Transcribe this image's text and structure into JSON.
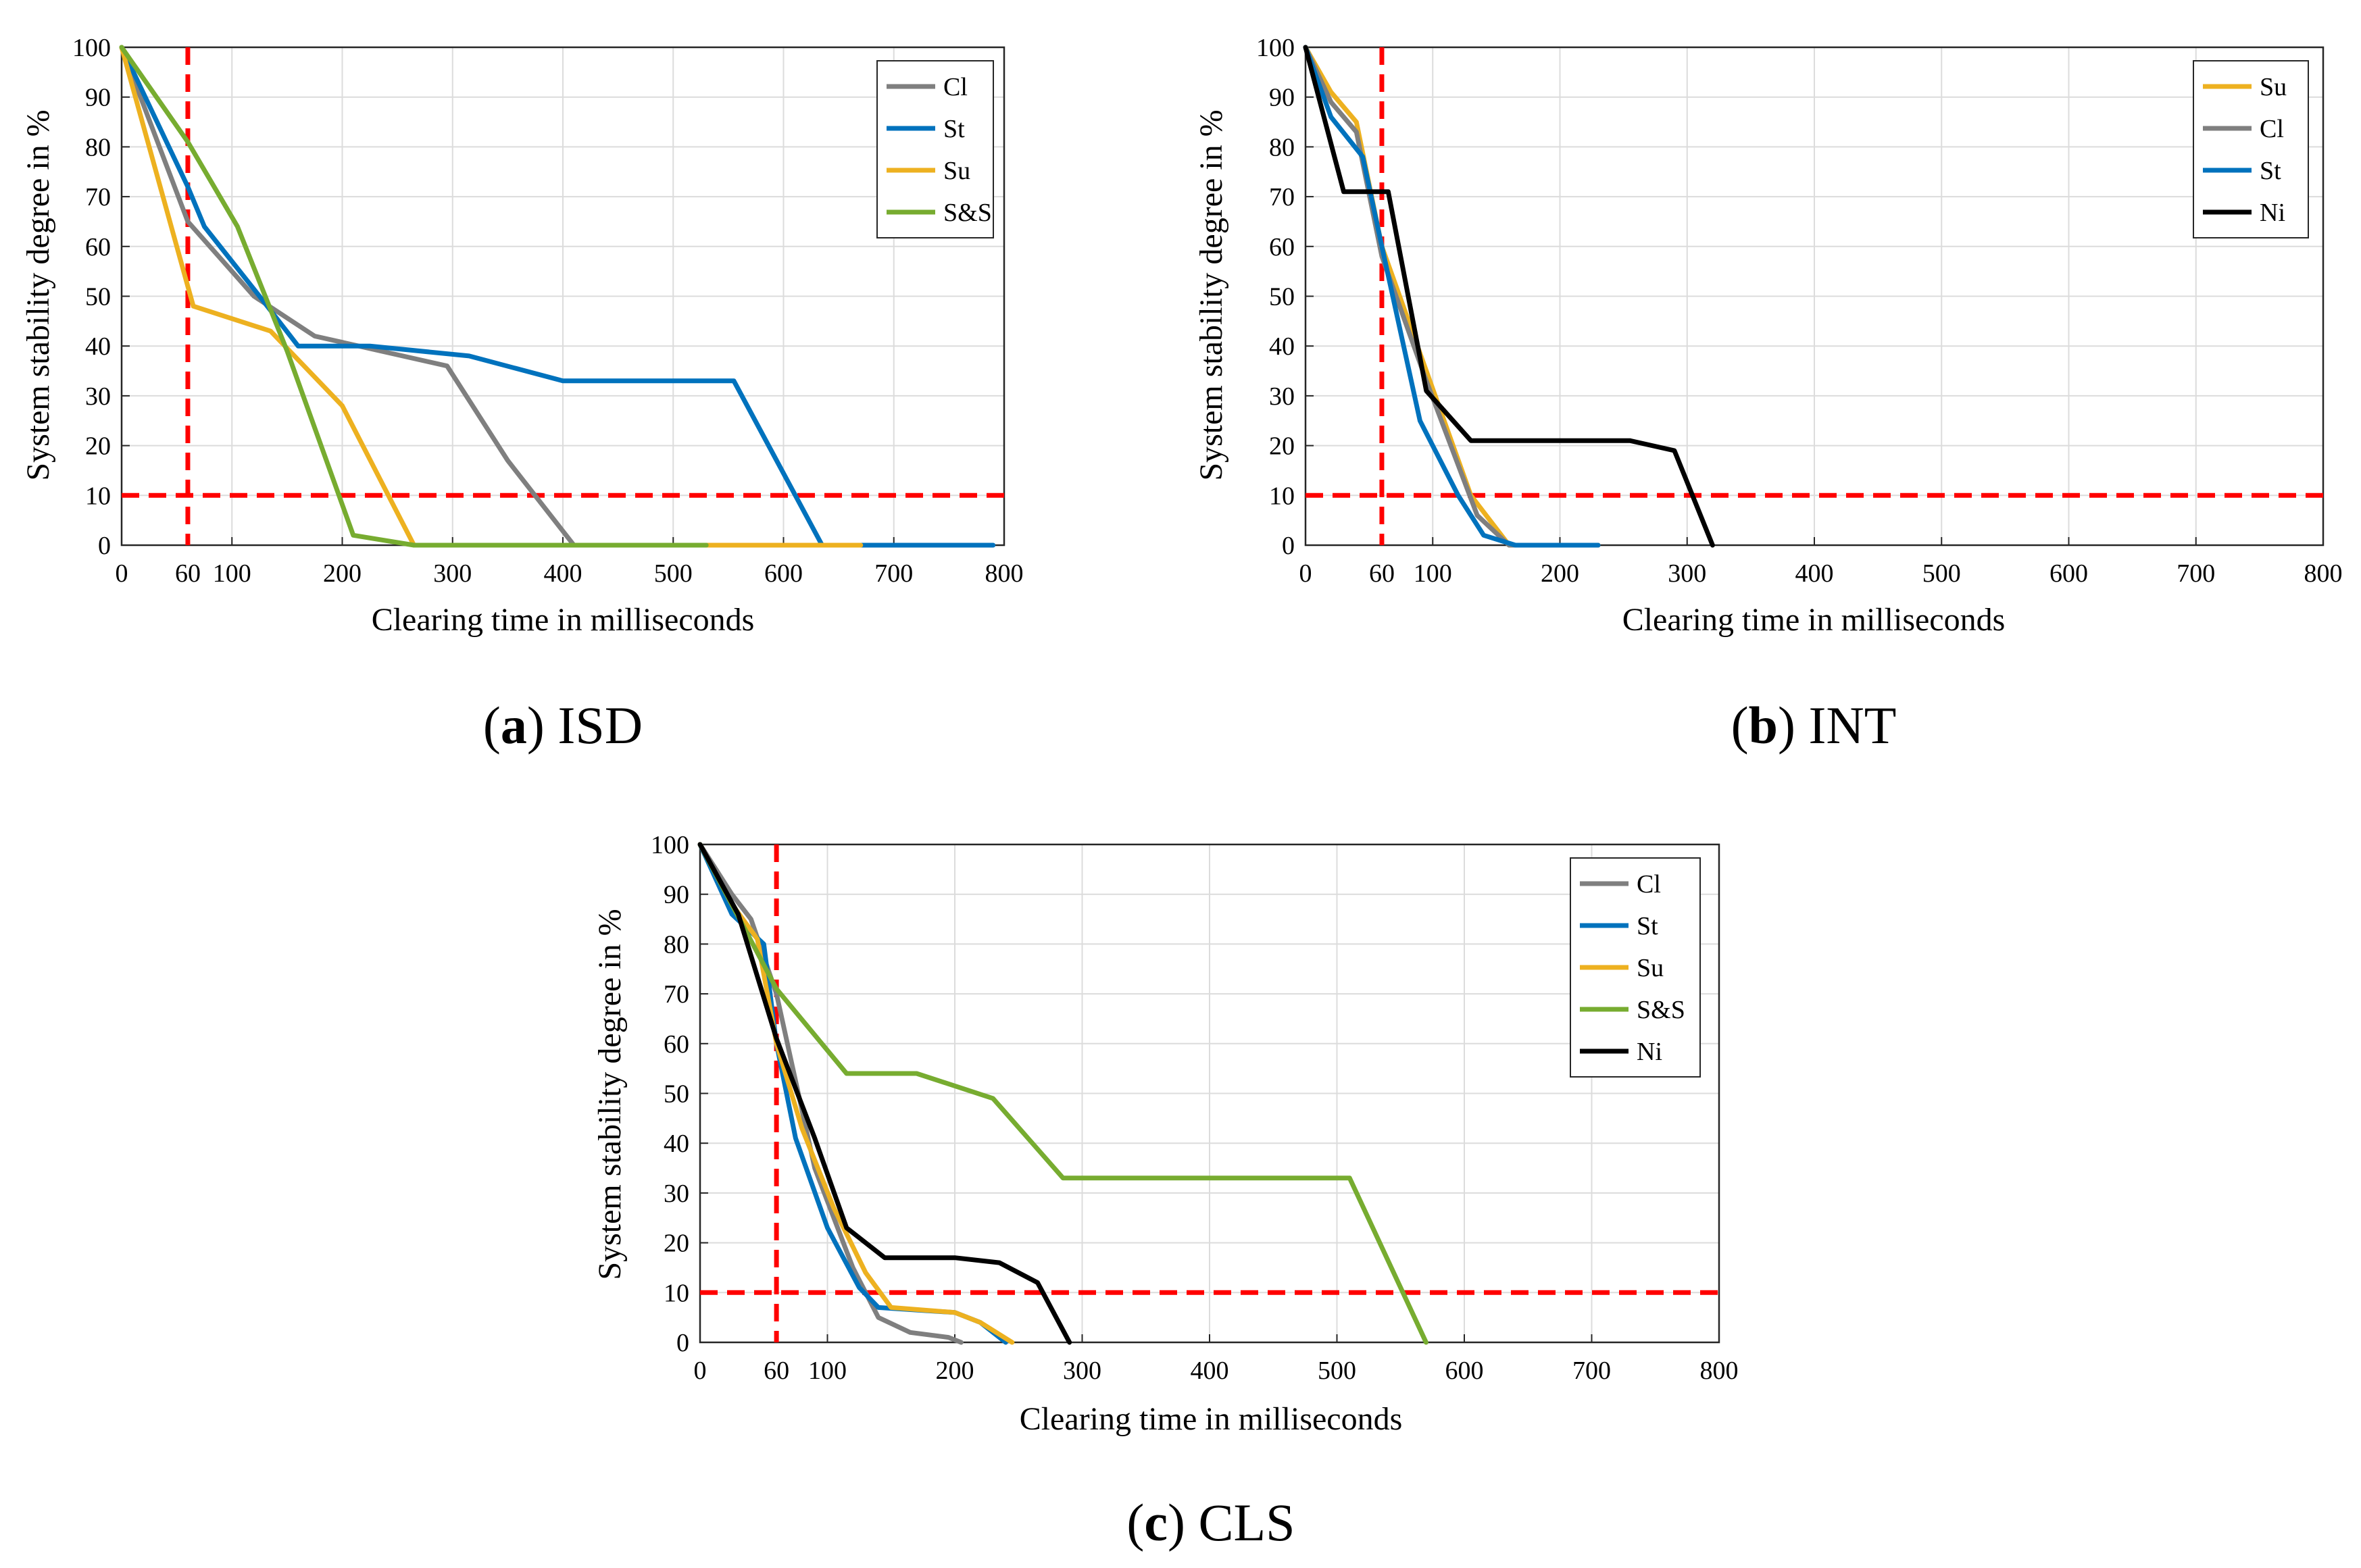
{
  "colors": {
    "Cl": "#7f7f7f",
    "St": "#0072bd",
    "Su": "#edb120",
    "S&S": "#77ac30",
    "Ni": "#000000",
    "threshold": "#ff0000"
  },
  "chart_data": [
    {
      "id": "a",
      "type": "line",
      "caption_letter": "a",
      "caption_text": "ISD",
      "xlabel": "Clearing time in milliseconds",
      "ylabel": "System stability degree in %",
      "xlim": [
        0,
        800
      ],
      "ylim": [
        0,
        100
      ],
      "xticks": [
        0,
        60,
        100,
        200,
        300,
        400,
        500,
        600,
        700,
        800
      ],
      "yticks": [
        0,
        10,
        20,
        30,
        40,
        50,
        60,
        70,
        80,
        90,
        100
      ],
      "threshold_x": 60,
      "threshold_y": 10,
      "legend": [
        "Cl",
        "St",
        "Su",
        "S&S"
      ],
      "series": [
        {
          "name": "Cl",
          "x": [
            0,
            60,
            120,
            175,
            295,
            350,
            410
          ],
          "y": [
            100,
            65,
            50,
            42,
            36,
            17,
            0
          ]
        },
        {
          "name": "St",
          "x": [
            0,
            60,
            75,
            125,
            160,
            225,
            315,
            400,
            555,
            635,
            790
          ],
          "y": [
            100,
            72,
            64,
            50,
            40,
            40,
            38,
            33,
            33,
            0,
            0
          ]
        },
        {
          "name": "Su",
          "x": [
            0,
            60,
            65,
            135,
            200,
            265,
            670
          ],
          "y": [
            100,
            52,
            48,
            43,
            28,
            0,
            0
          ]
        },
        {
          "name": "S&S",
          "x": [
            0,
            60,
            105,
            150,
            210,
            265,
            530
          ],
          "y": [
            100,
            81,
            64,
            39,
            2,
            0,
            0
          ]
        }
      ]
    },
    {
      "id": "b",
      "type": "line",
      "caption_letter": "b",
      "caption_text": "INT",
      "xlabel": "Clearing time in milliseconds",
      "ylabel": "System stability degree in %",
      "xlim": [
        0,
        800
      ],
      "ylim": [
        0,
        100
      ],
      "xticks": [
        0,
        60,
        100,
        200,
        300,
        400,
        500,
        600,
        700,
        800
      ],
      "yticks": [
        0,
        10,
        20,
        30,
        40,
        50,
        60,
        70,
        80,
        90,
        100
      ],
      "threshold_x": 60,
      "threshold_y": 10,
      "legend": [
        "Su",
        "Cl",
        "St",
        "Ni"
      ],
      "series": [
        {
          "name": "Su",
          "x": [
            0,
            20,
            40,
            60,
            95,
            130,
            160,
            230
          ],
          "y": [
            100,
            91,
            85,
            60,
            35,
            10,
            0,
            0
          ]
        },
        {
          "name": "Cl",
          "x": [
            0,
            20,
            40,
            60,
            95,
            135,
            160,
            230
          ],
          "y": [
            100,
            89,
            83,
            58,
            33,
            6,
            0,
            0
          ]
        },
        {
          "name": "St",
          "x": [
            0,
            20,
            45,
            60,
            90,
            120,
            140,
            165,
            230
          ],
          "y": [
            100,
            86,
            78,
            60,
            25,
            10,
            2,
            0,
            0
          ]
        },
        {
          "name": "Ni",
          "x": [
            0,
            30,
            65,
            95,
            130,
            255,
            290,
            320
          ],
          "y": [
            100,
            71,
            71,
            31,
            21,
            21,
            19,
            0
          ]
        }
      ]
    },
    {
      "id": "c",
      "type": "line",
      "caption_letter": "c",
      "caption_text": "CLS",
      "xlabel": "Clearing time in milliseconds",
      "ylabel": "System stability degree in %",
      "xlim": [
        0,
        800
      ],
      "ylim": [
        0,
        100
      ],
      "xticks": [
        0,
        60,
        100,
        200,
        300,
        400,
        500,
        600,
        700,
        800
      ],
      "yticks": [
        0,
        10,
        20,
        30,
        40,
        50,
        60,
        70,
        80,
        90,
        100
      ],
      "threshold_x": 60,
      "threshold_y": 10,
      "legend": [
        "Cl",
        "St",
        "Su",
        "S&S",
        "Ni"
      ],
      "series": [
        {
          "name": "Cl",
          "x": [
            0,
            25,
            40,
            60,
            90,
            120,
            140,
            165,
            195,
            205
          ],
          "y": [
            100,
            90,
            85,
            70,
            35,
            15,
            5,
            2,
            1,
            0
          ]
        },
        {
          "name": "St",
          "x": [
            0,
            25,
            50,
            60,
            75,
            100,
            125,
            140,
            200,
            220,
            240
          ],
          "y": [
            100,
            86,
            80,
            60,
            41,
            23,
            11,
            7,
            6,
            4,
            0
          ]
        },
        {
          "name": "Su",
          "x": [
            0,
            25,
            45,
            60,
            80,
            105,
            130,
            150,
            200,
            220,
            245
          ],
          "y": [
            100,
            88,
            81,
            60,
            43,
            27,
            14,
            7,
            6,
            4,
            0
          ]
        },
        {
          "name": "S&S",
          "x": [
            0,
            60,
            115,
            170,
            230,
            285,
            510,
            570
          ],
          "y": [
            100,
            71,
            54,
            54,
            49,
            33,
            33,
            0
          ]
        },
        {
          "name": "Ni",
          "x": [
            0,
            30,
            60,
            90,
            115,
            145,
            200,
            235,
            265,
            290
          ],
          "y": [
            100,
            86,
            61,
            41,
            23,
            17,
            17,
            16,
            12,
            0
          ]
        }
      ]
    }
  ]
}
